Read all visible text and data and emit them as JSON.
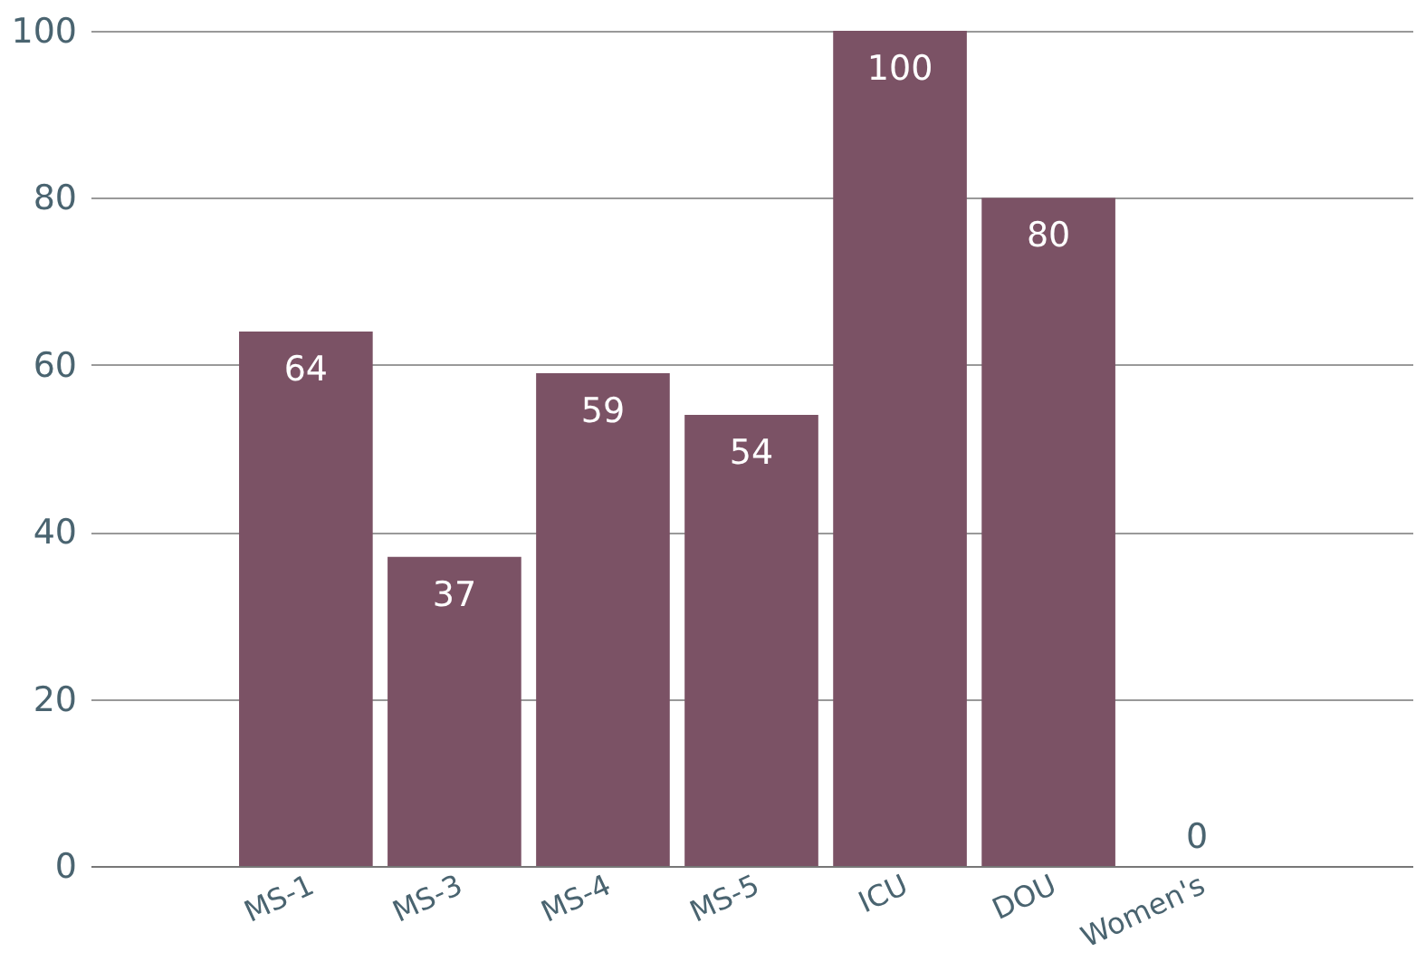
{
  "chart_data": {
    "type": "bar",
    "categories": [
      "MS-1",
      "MS-3",
      "MS-4",
      "MS-5",
      "ICU",
      "DOU",
      "Women's"
    ],
    "values": [
      64,
      37,
      59,
      54,
      100,
      80,
      0
    ],
    "color": "#7b5265",
    "ylim": [
      0,
      100
    ],
    "yticks": [
      0,
      20,
      40,
      60,
      80,
      100
    ],
    "grid": "y",
    "data_labels": true
  }
}
